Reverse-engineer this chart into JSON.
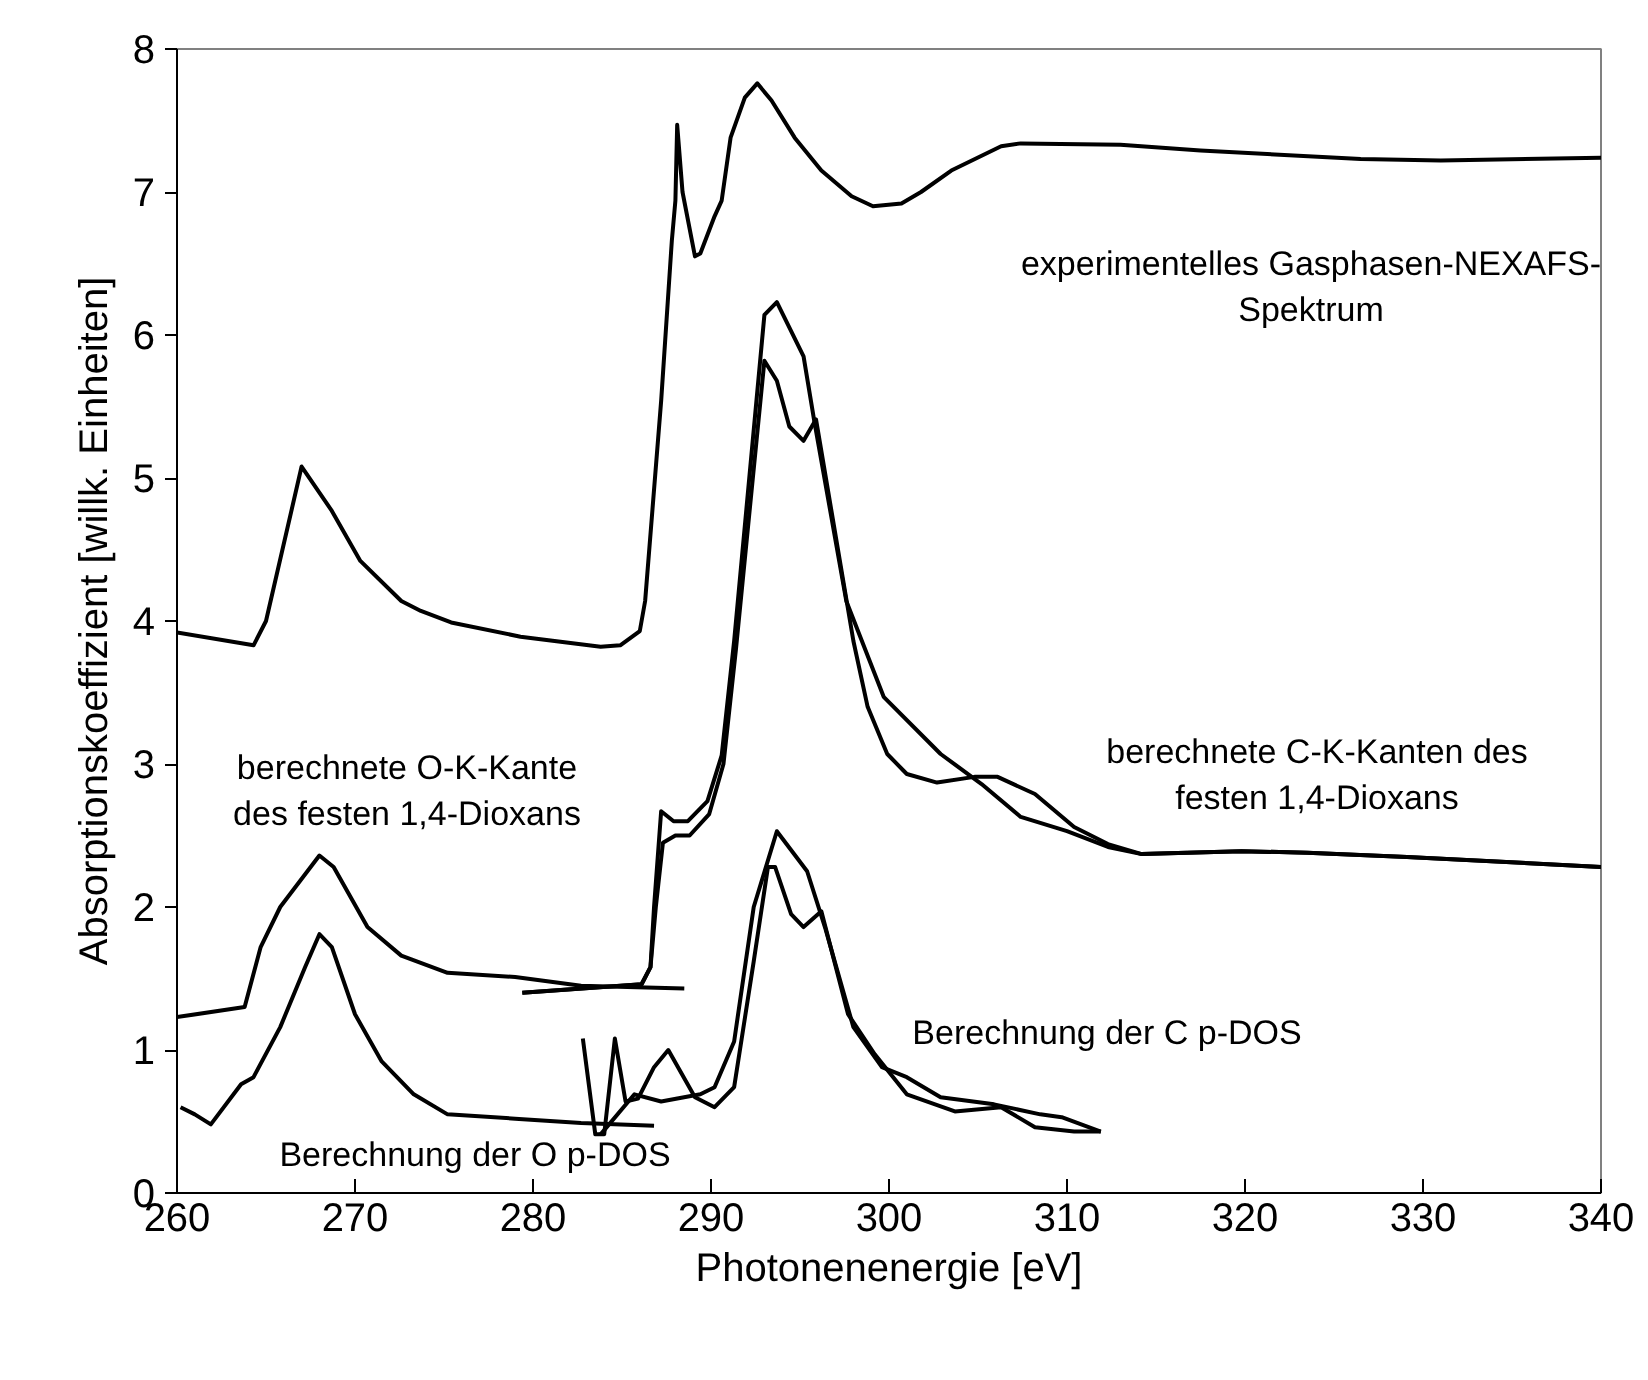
{
  "chart_data": {
    "type": "line",
    "xlabel": "Photonenenergie [eV]",
    "ylabel": "Absorptionskoeffizient [willk. Einheiten]",
    "xlim": [
      260,
      340
    ],
    "ylim": [
      0,
      8
    ],
    "xticks": [
      260,
      270,
      280,
      290,
      300,
      310,
      320,
      330,
      340
    ],
    "yticks": [
      0,
      1,
      2,
      3,
      4,
      5,
      6,
      7,
      8
    ],
    "series": [
      {
        "color": "#000000",
        "x": [
          260,
          264.3,
          265,
          267,
          268.7,
          270.3,
          272.6,
          273.7,
          275.4,
          279.3,
          283.8,
          284.9,
          286,
          286.3,
          287.2,
          287.8,
          288,
          288.1,
          288.4,
          289.1,
          289.4,
          290.2,
          290.6,
          291.1,
          291.9,
          292.6,
          293.4,
          294.7,
          296.2,
          297.9,
          299.1,
          300.7,
          301.8,
          303.5,
          306.3,
          307.4,
          313,
          317.5,
          326.5,
          331,
          340
        ],
        "values": [
          3.92,
          3.83,
          4.0,
          5.08,
          4.77,
          4.42,
          4.14,
          4.07,
          3.99,
          3.89,
          3.82,
          3.83,
          3.93,
          4.14,
          5.54,
          6.66,
          6.94,
          7.47,
          7.0,
          6.55,
          6.57,
          6.83,
          6.94,
          7.38,
          7.66,
          7.76,
          7.64,
          7.38,
          7.15,
          6.97,
          6.9,
          6.92,
          7.0,
          7.15,
          7.32,
          7.34,
          7.33,
          7.29,
          7.23,
          7.22,
          7.24
        ]
      },
      {
        "color": "#000000",
        "x": [
          260,
          263.8,
          264.7,
          265.8,
          268,
          268.8,
          270.7,
          272.6,
          275.2,
          279,
          282.7,
          285.3,
          288.5
        ],
        "values": [
          1.23,
          1.3,
          1.72,
          2.0,
          2.36,
          2.28,
          1.86,
          1.66,
          1.54,
          1.51,
          1.45,
          1.44,
          1.43
        ]
      },
      {
        "color": "#000000",
        "x": [
          279.4,
          286.1,
          286.6,
          286.8,
          287.2,
          287.9,
          288.7,
          289.8,
          290.6,
          291.3,
          293,
          293.7,
          295.2,
          295.8,
          297.6,
          299.7,
          302.9,
          305.2,
          307.4,
          310,
          312.3,
          314.2,
          319.8,
          323.5,
          329.1,
          340
        ],
        "values": [
          1.4,
          1.46,
          1.58,
          2.0,
          2.67,
          2.6,
          2.6,
          2.74,
          3.06,
          3.86,
          6.14,
          6.23,
          5.85,
          5.4,
          4.14,
          3.47,
          3.07,
          2.86,
          2.63,
          2.53,
          2.42,
          2.37,
          2.39,
          2.38,
          2.35,
          2.28
        ]
      },
      {
        "color": "#000000",
        "x": [
          279.4,
          286.1,
          286.6,
          286.9,
          287.3,
          288,
          288.8,
          289.9,
          290.7,
          291.4,
          293,
          293.7,
          294.4,
          295.2,
          295.9,
          298,
          298.8,
          299.9,
          301,
          302.7,
          304.8,
          306.1,
          308.2,
          310.4,
          312.3,
          314.2,
          319.8,
          323.5,
          329.1,
          340
        ],
        "values": [
          1.4,
          1.46,
          1.58,
          2.0,
          2.45,
          2.5,
          2.5,
          2.65,
          3.0,
          3.8,
          5.82,
          5.68,
          5.36,
          5.26,
          5.41,
          3.86,
          3.4,
          3.07,
          2.93,
          2.87,
          2.91,
          2.91,
          2.79,
          2.56,
          2.44,
          2.37,
          2.39,
          2.38,
          2.35,
          2.28
        ]
      },
      {
        "color": "#000000",
        "x": [
          260.2,
          261,
          261.9,
          263.6,
          264.3,
          265.8,
          267.2,
          268,
          268.7,
          270,
          271.5,
          273.3,
          275.2,
          279,
          282.7,
          286.8
        ],
        "values": [
          0.6,
          0.55,
          0.48,
          0.76,
          0.81,
          1.16,
          1.58,
          1.81,
          1.72,
          1.25,
          0.92,
          0.69,
          0.55,
          0.52,
          0.49,
          0.47
        ]
      },
      {
        "color": "#000000",
        "x": [
          282.8,
          283.5,
          284,
          284.6,
          285.2,
          285.9,
          286.8,
          287.6,
          289.1,
          290.2,
          291.3,
          292.4,
          293.2,
          293.6,
          294.5,
          295.2,
          296.2,
          297.7,
          299.2,
          301,
          303.7,
          306.3,
          308.2,
          310.4,
          311.9
        ],
        "values": [
          1.08,
          0.41,
          0.41,
          1.08,
          0.64,
          0.66,
          0.88,
          1.0,
          0.67,
          0.6,
          0.74,
          1.62,
          2.28,
          2.28,
          1.95,
          1.86,
          1.97,
          1.25,
          0.97,
          0.69,
          0.57,
          0.6,
          0.46,
          0.43,
          0.43
        ]
      },
      {
        "color": "#000000",
        "x": [
          283.8,
          285.7,
          287.2,
          289.4,
          290.2,
          291.3,
          292.4,
          293.7,
          295.4,
          296.4,
          298,
          299.6,
          301,
          302.9,
          305.9,
          308.5,
          309.7,
          311.9
        ],
        "values": [
          0.41,
          0.69,
          0.64,
          0.69,
          0.74,
          1.06,
          2.0,
          2.53,
          2.25,
          1.86,
          1.16,
          0.88,
          0.81,
          0.67,
          0.62,
          0.55,
          0.53,
          0.43
        ]
      }
    ],
    "annotations": [
      "experimentelles Gasphasen-NEXAFS-\nSpektrum",
      "berechnete O-K-Kante\ndes festen 1,4-Dioxans",
      "berechnete C-K-Kanten des\nfesten 1,4-Dioxans",
      "Berechnung der O p-DOS",
      "Berechnung der C p-DOS"
    ]
  }
}
